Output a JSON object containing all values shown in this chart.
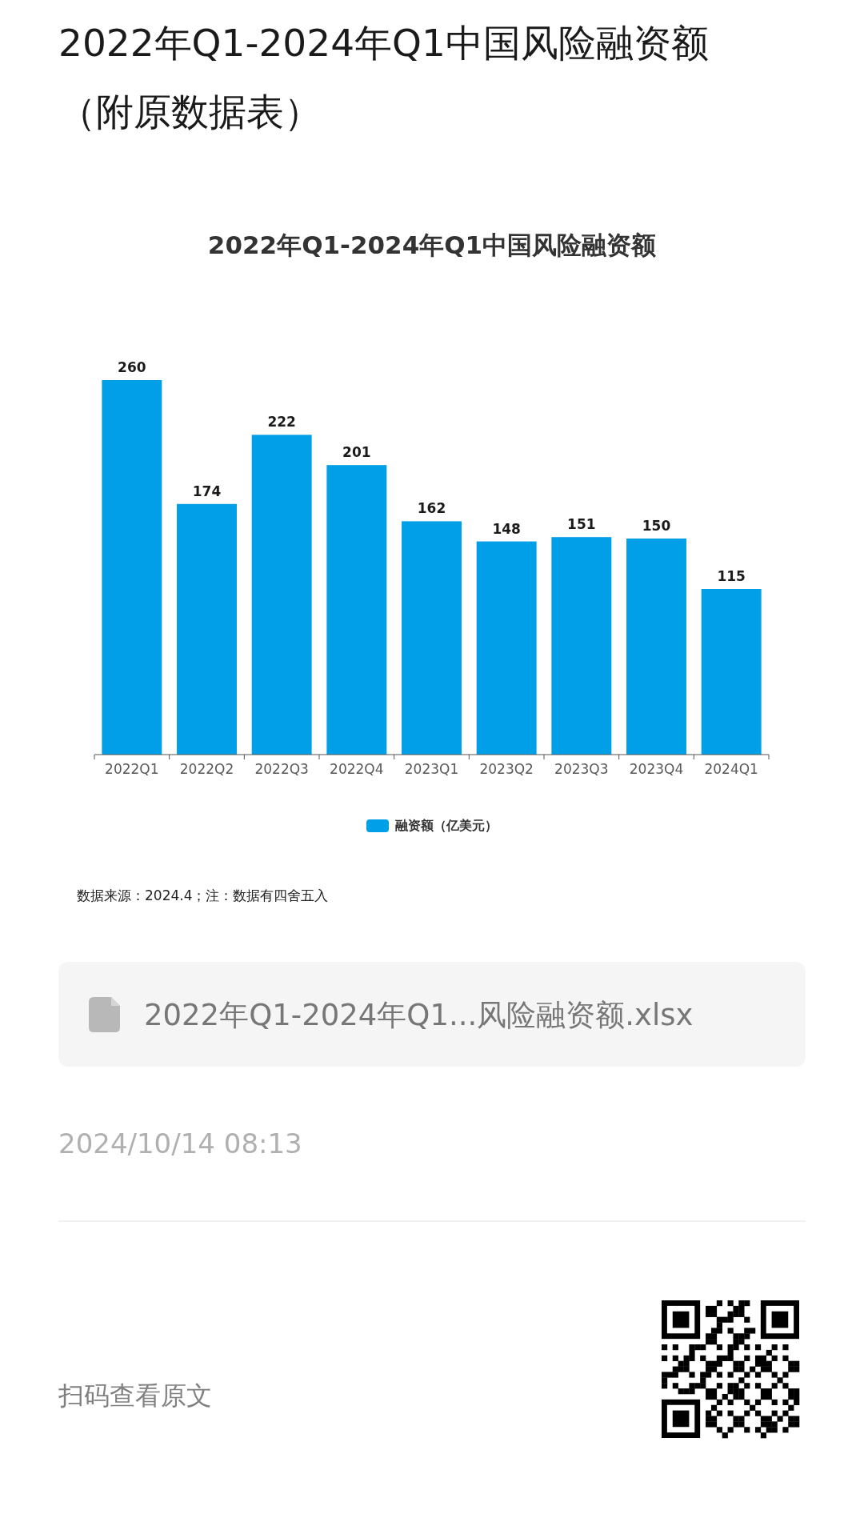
{
  "chart_data": {
    "type": "bar",
    "title": "2022年Q1-2024年Q1中国风险融资额（附原数据表）",
    "subtitle": "2022年Q1-2024年Q1中国风险融资额",
    "categories": [
      "2022Q1",
      "2022Q2",
      "2022Q3",
      "2022Q4",
      "2023Q1",
      "2023Q2",
      "2023Q3",
      "2023Q4",
      "2024Q1"
    ],
    "series": [
      {
        "name": "融资额（亿美元）",
        "color": "#009fe8",
        "values": [
          260,
          174,
          222,
          201,
          162,
          148,
          151,
          150,
          115
        ]
      }
    ],
    "data_labels": true,
    "legend": "bottom",
    "annotations": [
      "数据来源：2024.4；注：数据有四舍五入",
      "2022年Q1-2024年Q1...风险融资额.xlsx",
      "2024/10/14 08:13",
      "扫码查看原文"
    ]
  }
}
